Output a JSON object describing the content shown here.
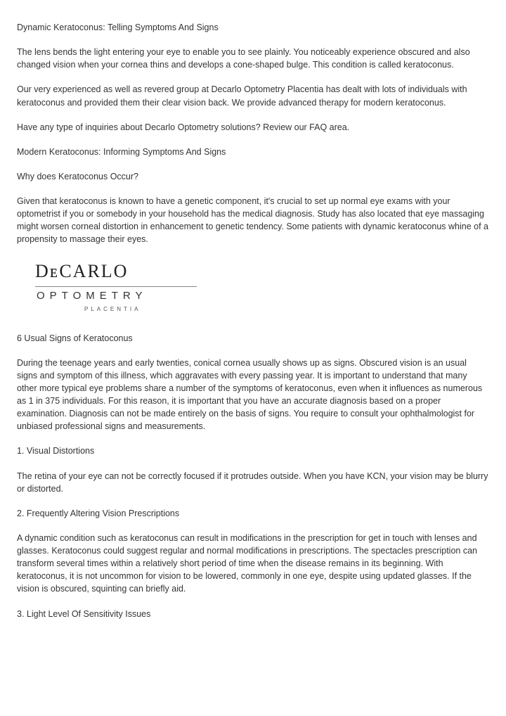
{
  "title": "Dynamic Keratoconus: Telling Symptoms And Signs",
  "p1": "The lens bends the light entering your eye to enable you to see plainly. You noticeably experience obscured and also changed vision when your cornea thins and develops a cone-shaped bulge. This condition is called keratoconus.",
  "p2": "Our very experienced as well as revered group at Decarlo Optometry Placentia has dealt with lots of individuals with keratoconus and provided them their clear vision back. We provide advanced therapy for modern keratoconus.",
  "p3": "Have any type of inquiries about Decarlo Optometry solutions? Review our FAQ area.",
  "p4": "Modern Keratoconus: Informing Symptoms And Signs",
  "p5": "Why does Keratoconus Occur?",
  "p6": "Given that keratoconus is known to have a genetic component, it's crucial to set up normal eye exams with your optometrist if you or somebody in your household has the medical diagnosis. Study has also located that eye massaging might worsen corneal distortion in enhancement to genetic tendency. Some patients with dynamic keratoconus whine of a propensity to massage their eyes.",
  "logo": {
    "main": "DᴇCARLO",
    "sub": "OPTOMETRY",
    "loc": "PLACENTIA"
  },
  "h2": "6 Usual Signs of Keratoconus",
  "p7": "During the teenage years and early twenties, conical cornea usually shows up as signs. Obscured vision is an usual signs and symptom of this illness, which aggravates with every passing year. It is important to understand that many other more typical eye problems share a number of the symptoms of keratoconus, even when it influences as numerous as 1 in 375 individuals. For this reason, it is important that you have an accurate diagnosis based on a proper examination. Diagnosis can not be made entirely on the basis of signs. You require to consult your ophthalmologist for unbiased professional signs and measurements.",
  "s1h": "1. Visual Distortions",
  "s1p": "The retina of your eye can not be correctly focused if it protrudes outside. When you have KCN, your vision may be blurry or distorted.",
  "s2h": "2. Frequently Altering Vision Prescriptions",
  "s2p": "A dynamic condition such as keratoconus can result in modifications in the prescription for get in touch with lenses and glasses. Keratoconus could suggest regular and normal modifications in prescriptions. The spectacles prescription can transform several times within a relatively short period of time when the disease remains in its beginning. With keratoconus, it is not uncommon for vision to be lowered, commonly in one eye, despite using updated glasses. If the vision is obscured, squinting can briefly aid.",
  "s3h": "3. Light Level Of Sensitivity Issues"
}
